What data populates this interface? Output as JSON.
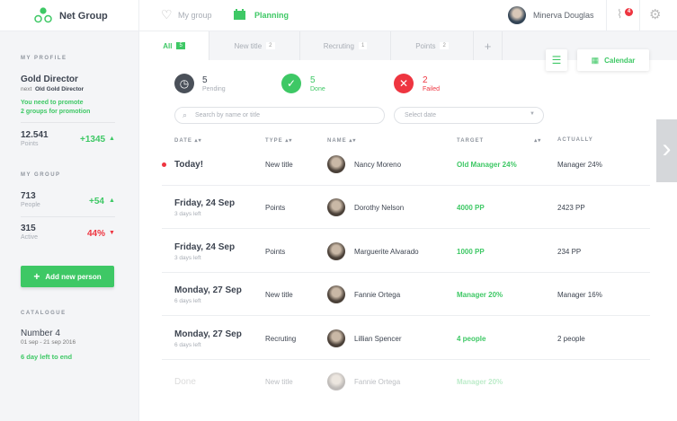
{
  "app": {
    "name": "Net Group",
    "brand_color": "#3ec865"
  },
  "nav": {
    "my_group": "My group",
    "planning": "Planning",
    "user": "Minerva Douglas",
    "notifications": "4"
  },
  "sidebar": {
    "profile_heading": "MY PROFILE",
    "rank": "Gold Director",
    "next_prefix": "next",
    "next_rank": "Old Gold Director",
    "promo_line1": "You need to promote",
    "promo_line2": "2 groups for promotion",
    "points_value": "12.541",
    "points_label": "Points",
    "points_delta": "+1345",
    "group_heading": "MY GROUP",
    "people_value": "713",
    "people_label": "People",
    "people_delta": "+54",
    "active_value": "315",
    "active_label": "Active",
    "active_delta": "44%",
    "add_button": "Add new person",
    "catalogue_heading": "CATALOGUE",
    "catalogue_name": "Number 4",
    "catalogue_dates": "01 sep - 21 sep 2016",
    "catalogue_left": "6 day left to end"
  },
  "tabs": [
    {
      "label": "All",
      "count": "5"
    },
    {
      "label": "New title",
      "count": "2"
    },
    {
      "label": "Recruting",
      "count": "1"
    },
    {
      "label": "Points",
      "count": "2"
    }
  ],
  "toolbar": {
    "calendar": "Calendar"
  },
  "stats": {
    "pending_value": "5",
    "pending_label": "Pending",
    "done_value": "5",
    "done_label": "Done",
    "failed_value": "2",
    "failed_label": "Failed"
  },
  "search": {
    "placeholder": "Search by name or title",
    "date_placeholder": "Select date"
  },
  "table": {
    "headers": [
      "DATE",
      "TYPE",
      "NAME",
      "TARGET",
      "ACTUALLY"
    ],
    "rows": [
      {
        "date": "Today!",
        "sub": "",
        "type": "New title",
        "name": "Nancy Moreno",
        "target": "Old Manager 24%",
        "actual": "Manager 24%"
      },
      {
        "date": "Friday, 24 Sep",
        "sub": "3 days left",
        "type": "Points",
        "name": "Dorothy Nelson",
        "target": "4000 PP",
        "actual": "2423 PP"
      },
      {
        "date": "Friday, 24 Sep",
        "sub": "3 days left",
        "type": "Points",
        "name": "Marguerite Alvarado",
        "target": "1000 PP",
        "actual": "234 PP"
      },
      {
        "date": "Monday, 27 Sep",
        "sub": "6 days left",
        "type": "New title",
        "name": "Fannie Ortega",
        "target": "Manager 20%",
        "actual": "Manager 16%"
      },
      {
        "date": "Monday, 27 Sep",
        "sub": "6 days left",
        "type": "Recruting",
        "name": "Lillian Spencer",
        "target": "4 people",
        "actual": "2 people"
      },
      {
        "date": "Done",
        "sub": "",
        "type": "New title",
        "name": "Fannie Ortega",
        "target": "Manager 20%",
        "actual": ""
      }
    ]
  }
}
